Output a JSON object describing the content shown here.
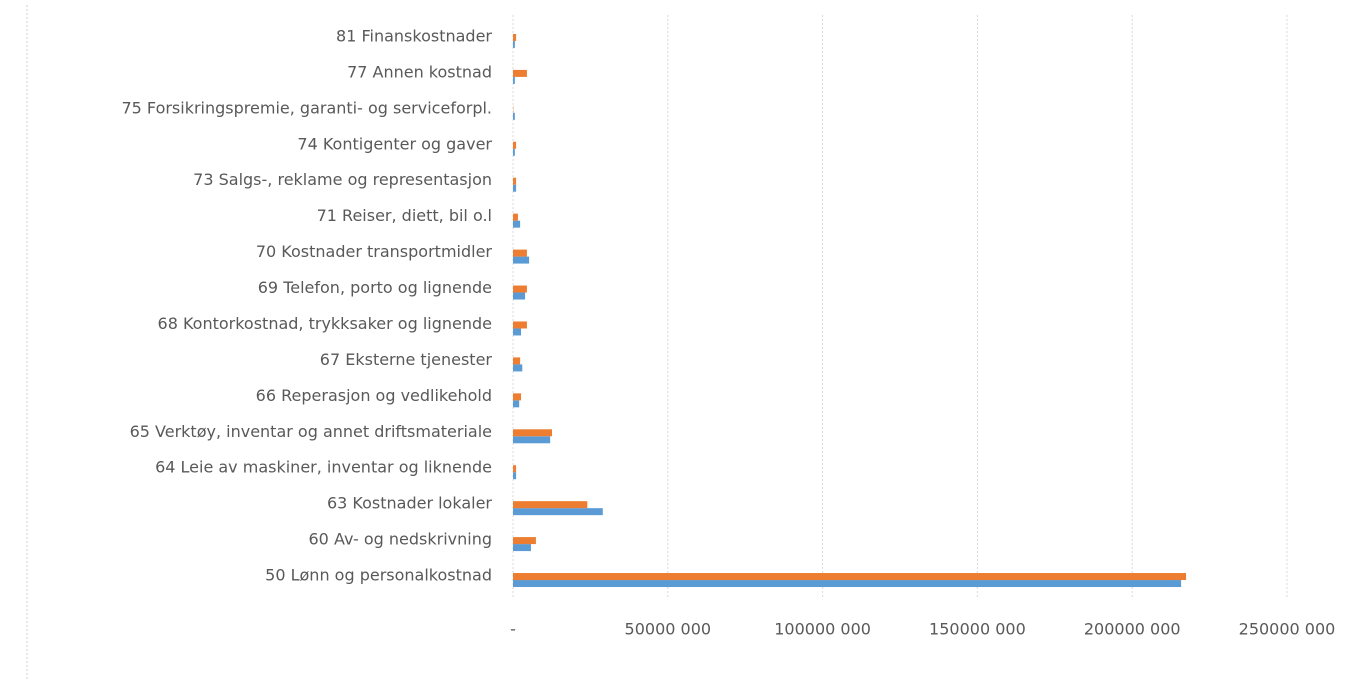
{
  "chart_data": {
    "type": "bar",
    "orientation": "horizontal",
    "categories": [
      "50 Lønn og personalkostnad",
      "60 Av- og nedskrivning",
      "63 Kostnader lokaler",
      "64 Leie av maskiner, inventar og liknende",
      "65 Verktøy, inventar og annet driftsmateriale",
      "66 Reperasjon og vedlikehold",
      "67 Eksterne tjenester",
      "68 Kontorkostnad, trykksaker og lignende",
      "69 Telefon, porto og lignende",
      "70 Kostnader transportmidler",
      "71 Reiser, diett, bil o.l",
      "73 Salgs-, reklame og representasjon",
      "74 Kontigenter og gaver",
      "75 Forsikringspremie, garanti- og serviceforpl.",
      "77 Annen kostnad",
      "81 Finanskostnader"
    ],
    "series": [
      {
        "color": "#5b9bd5",
        "values": [
          215800000,
          5800000,
          29000000,
          1000000,
          12000000,
          2000000,
          3000000,
          2600000,
          3900000,
          5200000,
          2300000,
          1000000,
          600000,
          600000,
          600000,
          600000
        ]
      },
      {
        "color": "#ed7d31",
        "values": [
          217400000,
          7400000,
          24000000,
          1000000,
          12600000,
          2600000,
          2300000,
          4500000,
          4500000,
          4500000,
          1600000,
          1000000,
          1000000,
          100000,
          4500000,
          1000000
        ]
      }
    ],
    "xlim": [
      0,
      250000000
    ],
    "xticks": [
      {
        "value": 0,
        "label": "-"
      },
      {
        "value": 50000000,
        "label": "50000 000"
      },
      {
        "value": 100000000,
        "label": "100000 000"
      },
      {
        "value": 150000000,
        "label": "150000 000"
      },
      {
        "value": 200000000,
        "label": "200000 000"
      },
      {
        "value": 250000000,
        "label": "250000 000"
      }
    ],
    "grid": true
  }
}
